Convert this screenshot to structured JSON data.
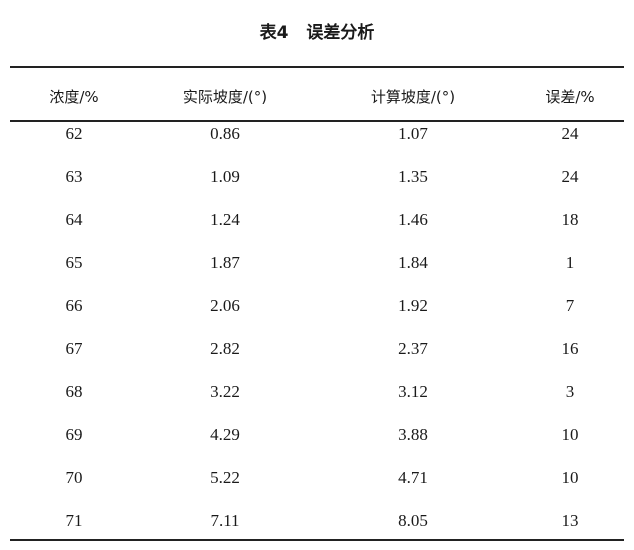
{
  "title": {
    "number": "表4",
    "text": "误差分析"
  },
  "table": {
    "headers": [
      "浓度/%",
      "实际坡度/(°)",
      "计算坡度/(°)",
      "误差/%"
    ],
    "rows": [
      [
        "62",
        "0.86",
        "1.07",
        "24"
      ],
      [
        "63",
        "1.09",
        "1.35",
        "24"
      ],
      [
        "64",
        "1.24",
        "1.46",
        "18"
      ],
      [
        "65",
        "1.87",
        "1.84",
        "1"
      ],
      [
        "66",
        "2.06",
        "1.92",
        "7"
      ],
      [
        "67",
        "2.82",
        "2.37",
        "16"
      ],
      [
        "68",
        "3.22",
        "3.12",
        "3"
      ],
      [
        "69",
        "4.29",
        "3.88",
        "10"
      ],
      [
        "70",
        "5.22",
        "4.71",
        "10"
      ],
      [
        "71",
        "7.11",
        "8.05",
        "13"
      ]
    ]
  }
}
